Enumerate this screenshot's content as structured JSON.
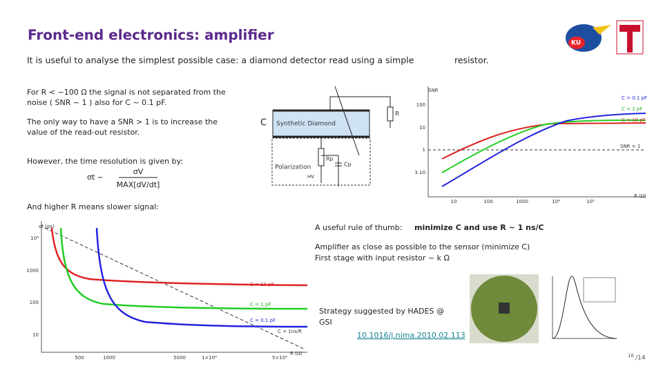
{
  "header": {
    "title": "Front-end electronics: amplifier",
    "subtitle": "It is  useful to analyse the simplest possible case: a diamond detector read using a simple",
    "subtitle_end": "resistor."
  },
  "left": {
    "bullet1": [
      "For R < ~100 Ω the signal is not separated from the",
      "noise ( SNR ~ 1 ) also for C ~ 0.1 pF."
    ],
    "bullet2": [
      "The only way to have a SNR > 1 is to increase the",
      "value of the read-out resistor."
    ],
    "bullet3": "However, the time resolution is given by:",
    "formula": {
      "lhs": "σt ~",
      "numerator": "σV",
      "denominator": "MAX[dV/dt]"
    },
    "bullet4": "And higher R means slower signal:"
  },
  "circuit": {
    "c_label": "C",
    "diamond": "Synthetic Diamond",
    "r": "R",
    "polarization": "Polarization",
    "rp": "Rp",
    "cp": "Cp",
    "hv": "HV"
  },
  "snr_plot": {
    "y_title": "SNR",
    "y_labels": [
      "100",
      "10",
      "1",
      "3.10"
    ],
    "x_labels": [
      "10",
      "100",
      "1000",
      "10⁴",
      "10⁵"
    ],
    "x_title": "R (Ω)",
    "legend": [
      "C = 0.1 pF",
      "C = 1 pF",
      "C = 10 pF"
    ],
    "threshold": "SNR = 1"
  },
  "rt_plot": {
    "y_title": "σt (ps)",
    "y_labels": [
      "10⁴",
      "1000",
      "100",
      "10"
    ],
    "x_labels": [
      "500",
      "1000",
      "5000",
      "1×10⁴",
      "5×10⁴"
    ],
    "x_title": "R (Ω)",
    "legend": [
      "C = 10 pF",
      "C = 1 pF",
      "C = 0.1 pF",
      "C = 1ns/R"
    ]
  },
  "right": {
    "rule": "A useful rule of thumb:",
    "rule_bold": "minimize C and use R ~ 1 ns/C",
    "line1": "Amplifier as close as possible to the sensor (minimize C)",
    "line2": "First stage with input resistor ~ k    Ω",
    "strategy": [
      "Strategy suggested by HADES @",
      "GSI"
    ],
    "link": "10.1016/j.nima.2010.02.113"
  },
  "page": {
    "number": "16",
    "total": "/14"
  }
}
